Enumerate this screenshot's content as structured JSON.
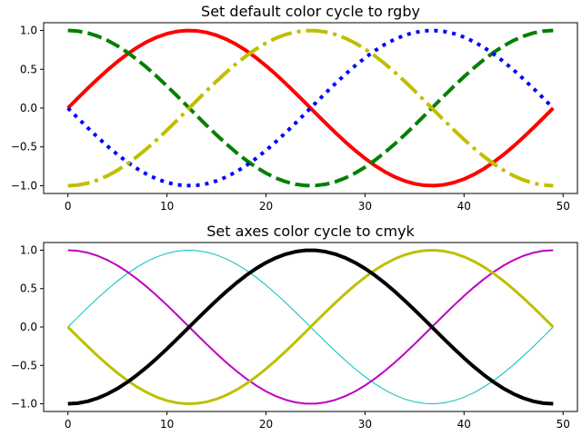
{
  "chart_data": [
    {
      "type": "line",
      "title": "Set default color cycle to rgby",
      "xlabel": "",
      "ylabel": "",
      "xlim": [
        -2.45,
        51.45
      ],
      "ylim": [
        -1.1,
        1.1
      ],
      "xticks": [
        0,
        10,
        20,
        30,
        40,
        50
      ],
      "yticks": [
        -1.0,
        -0.5,
        0.0,
        0.5,
        1.0
      ],
      "xtick_labels": [
        "0",
        "10",
        "20",
        "30",
        "40",
        "50"
      ],
      "ytick_labels": [
        "−1.0",
        "−0.5",
        "0.0",
        "0.5",
        "1.0"
      ],
      "grid": false,
      "x": {
        "start": 0,
        "end": 49,
        "step": 1
      },
      "series": [
        {
          "function": "sin(2πx/49)",
          "color": "#ff0000",
          "style": "solid",
          "linewidth": 4
        },
        {
          "function": "cos(2πx/49)",
          "color": "#008000",
          "style": "dashed",
          "linewidth": 4
        },
        {
          "function": "-sin(2πx/49)",
          "color": "#0000ff",
          "style": "dotted",
          "linewidth": 4
        },
        {
          "function": "-cos(2πx/49)",
          "color": "#bfbf00",
          "style": "dashdot",
          "linewidth": 4
        }
      ]
    },
    {
      "type": "line",
      "title": "Set axes color cycle to cmyk",
      "xlabel": "",
      "ylabel": "",
      "xlim": [
        -2.45,
        51.45
      ],
      "ylim": [
        -1.1,
        1.1
      ],
      "xticks": [
        0,
        10,
        20,
        30,
        40,
        50
      ],
      "yticks": [
        -1.0,
        -0.5,
        0.0,
        0.5,
        1.0
      ],
      "xtick_labels": [
        "0",
        "10",
        "20",
        "30",
        "40",
        "50"
      ],
      "ytick_labels": [
        "−1.0",
        "−0.5",
        "0.0",
        "0.5",
        "1.0"
      ],
      "grid": false,
      "x": {
        "start": 0,
        "end": 49,
        "step": 1
      },
      "series": [
        {
          "function": "sin(2πx/49)",
          "color": "#00bfbf",
          "style": "solid",
          "linewidth": 1
        },
        {
          "function": "cos(2πx/49)",
          "color": "#bf00bf",
          "style": "solid",
          "linewidth": 2
        },
        {
          "function": "-sin(2πx/49)",
          "color": "#bfbf00",
          "style": "solid",
          "linewidth": 3
        },
        {
          "function": "-cos(2πx/49)",
          "color": "#000000",
          "style": "solid",
          "linewidth": 4
        }
      ]
    }
  ]
}
